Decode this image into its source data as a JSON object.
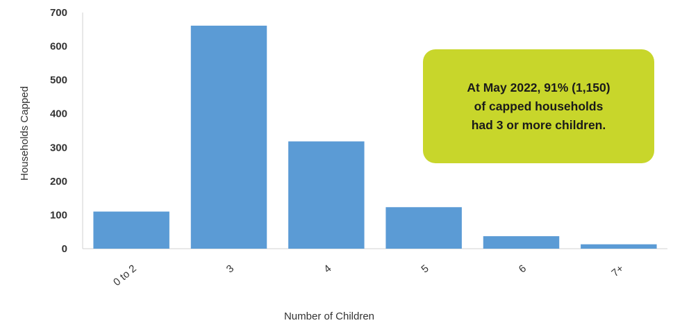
{
  "chart_data": {
    "type": "bar",
    "categories": [
      "0 to 2",
      "3",
      "4",
      "5",
      "6",
      "7+"
    ],
    "values": [
      110,
      661,
      318,
      123,
      37,
      13
    ],
    "title": "",
    "xlabel": "Number of Children",
    "ylabel": "Households Capped",
    "ylim": [
      0,
      700
    ],
    "yticks": [
      0,
      100,
      200,
      300,
      400,
      500,
      600,
      700
    ],
    "bar_color": "#5b9bd5",
    "grid": false
  },
  "callout": {
    "lines": [
      "At May 2022, 91% (1,150)",
      "of capped households",
      "had 3 or more children."
    ],
    "color": "#c8d62b"
  }
}
